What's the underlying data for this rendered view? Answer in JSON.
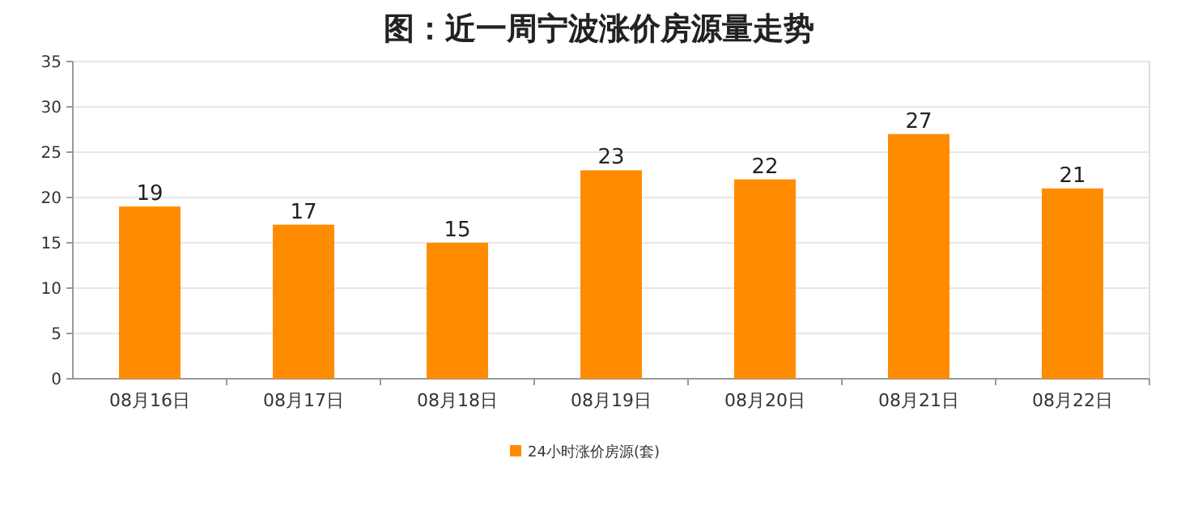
{
  "chart_data": {
    "type": "bar",
    "title": "图：近一周宁波涨价房源量走势",
    "categories": [
      "08月16日",
      "08月17日",
      "08月18日",
      "08月19日",
      "08月20日",
      "08月21日",
      "08月22日"
    ],
    "series": [
      {
        "name": "24小时涨价房源(套)",
        "color": "#ff8c00",
        "values": [
          19,
          17,
          15,
          23,
          22,
          27,
          21
        ]
      }
    ],
    "ylim": [
      0,
      35
    ],
    "yticks": [
      0,
      5,
      10,
      15,
      20,
      25,
      30,
      35
    ],
    "grid": "y",
    "legend": "bottom",
    "data_labels": true
  }
}
